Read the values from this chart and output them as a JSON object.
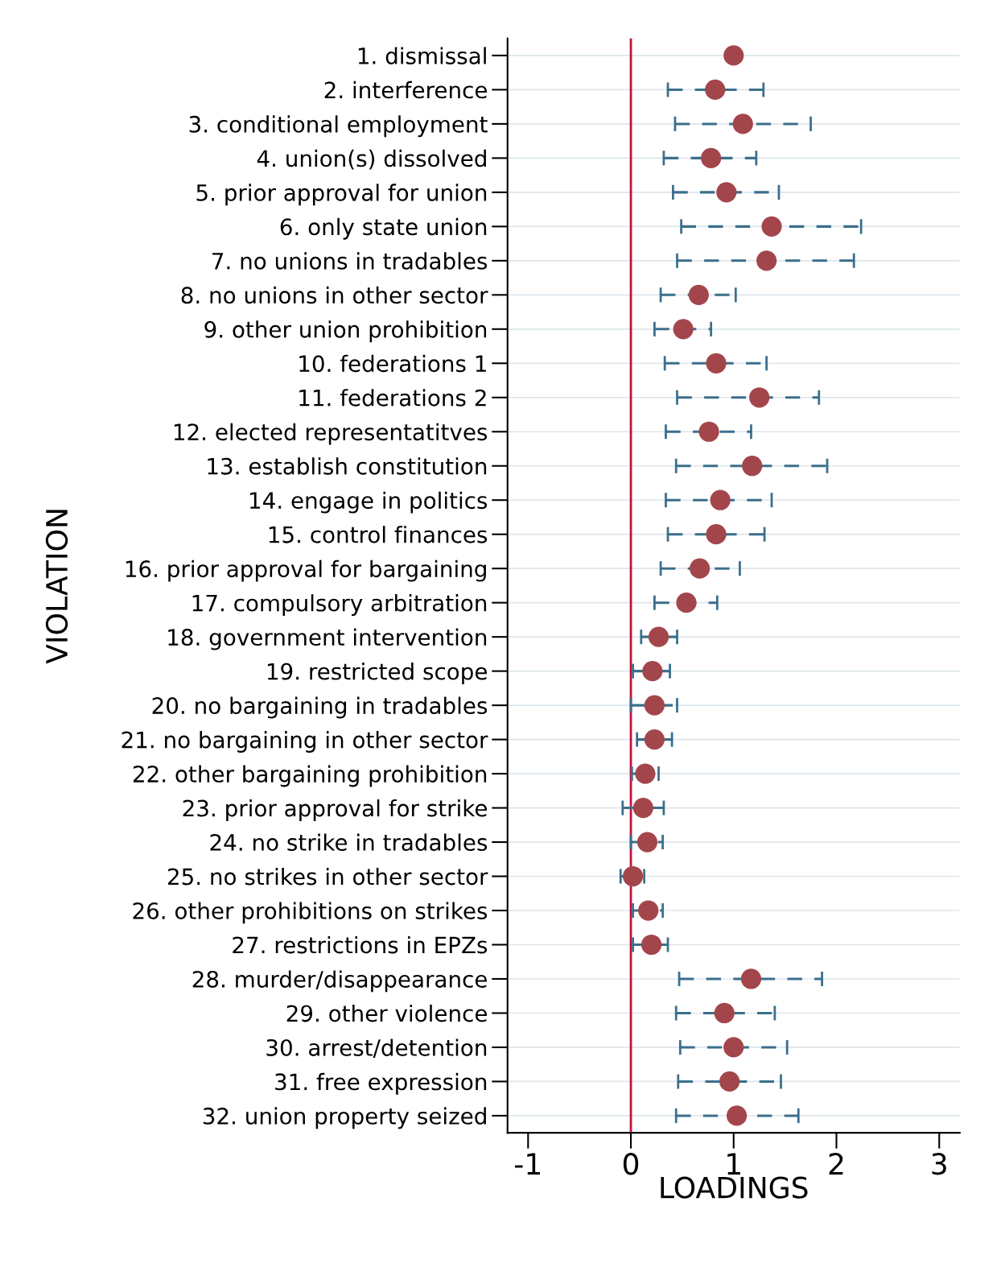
{
  "chart_data": {
    "type": "scatter",
    "orientation": "horizontal",
    "xlabel": "LOADINGS",
    "ylabel": "VIOLATION",
    "categories": [
      "1. dismissal",
      "2. interference",
      "3. conditional employment",
      "4. union(s) dissolved",
      "5. prior approval for union",
      "6. only state union",
      "7. no unions in tradables",
      "8. no unions in other sector",
      "9. other union prohibition",
      "10. federations 1",
      "11. federations 2",
      "12. elected representatitves",
      "13. establish constitution",
      "14. engage in politics",
      "15. control finances",
      "16. prior approval for bargaining",
      "17. compulsory arbitration",
      "18. government intervention",
      "19. restricted scope",
      "20. no bargaining in tradables",
      "21. no bargaining in other sector",
      "22. other bargaining prohibition",
      "23. prior approval for strike",
      "24. no strike in tradables",
      "25. no strikes in other sector",
      "26. other prohibitions on strikes",
      "27. restrictions in EPZs",
      "28. murder/disappearance",
      "29. other violence",
      "30. arrest/detention",
      "31. free expression",
      "32. union property seized"
    ],
    "series": [
      {
        "color": "#a3464c",
        "values": [
          1.0,
          0.82,
          1.09,
          0.78,
          0.93,
          1.37,
          1.32,
          0.66,
          0.51,
          0.83,
          1.25,
          0.76,
          1.18,
          0.87,
          0.83,
          0.67,
          0.54,
          0.27,
          0.21,
          0.23,
          0.23,
          0.14,
          0.12,
          0.16,
          0.02,
          0.17,
          0.2,
          1.17,
          0.91,
          1.0,
          0.96,
          1.03
        ],
        "errors": [
          null,
          [
            0.36,
            1.29
          ],
          [
            0.43,
            1.75
          ],
          [
            0.32,
            1.22
          ],
          [
            0.41,
            1.44
          ],
          [
            0.49,
            2.24
          ],
          [
            0.45,
            2.17
          ],
          [
            0.29,
            1.02
          ],
          [
            0.23,
            0.78
          ],
          [
            0.33,
            1.32
          ],
          [
            0.45,
            1.83
          ],
          [
            0.34,
            1.17
          ],
          [
            0.44,
            1.91
          ],
          [
            0.34,
            1.37
          ],
          [
            0.36,
            1.3
          ],
          [
            0.29,
            1.06
          ],
          [
            0.23,
            0.84
          ],
          [
            0.1,
            0.45
          ],
          [
            0.02,
            0.38
          ],
          [
            0.0,
            0.45
          ],
          [
            0.06,
            0.4
          ],
          [
            0.01,
            0.27
          ],
          [
            -0.08,
            0.32
          ],
          [
            0.0,
            0.31
          ],
          [
            -0.1,
            0.13
          ],
          [
            0.02,
            0.31
          ],
          [
            0.02,
            0.36
          ],
          [
            0.47,
            1.86
          ],
          [
            0.44,
            1.4
          ],
          [
            0.48,
            1.52
          ],
          [
            0.46,
            1.46
          ],
          [
            0.44,
            1.63
          ]
        ]
      }
    ],
    "xlim": [
      -1.2,
      3.2
    ],
    "xticks": [
      {
        "value": -1,
        "label": "-1"
      },
      0,
      1,
      2,
      3
    ],
    "ref_lines": [
      {
        "axis": "x",
        "value": 0,
        "color": "#c8103e"
      }
    ],
    "grid": "y",
    "marker": "circle",
    "line_style": "dashed"
  }
}
